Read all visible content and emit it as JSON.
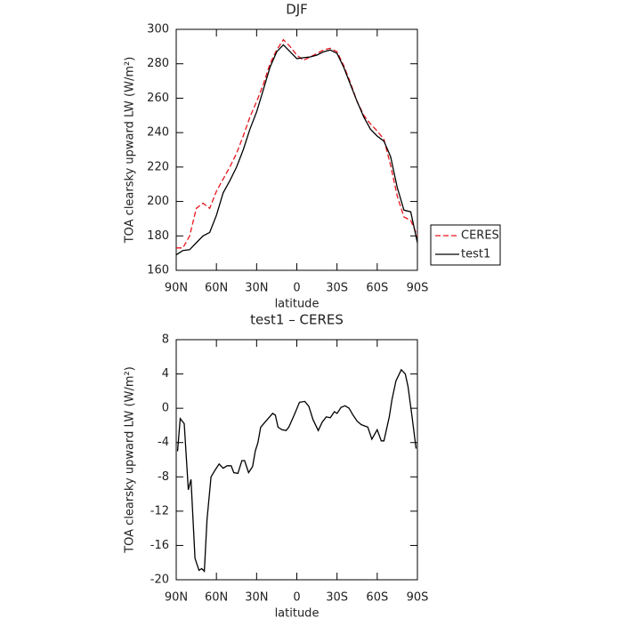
{
  "chart_data": [
    {
      "type": "line",
      "title": "DJF",
      "xlabel": "latitude",
      "ylabel": "TOA clearsky upward LW (W/m²)",
      "x": [
        90,
        85,
        80,
        75,
        70,
        65,
        60,
        55,
        50,
        45,
        40,
        35,
        30,
        25,
        20,
        15,
        10,
        5,
        0,
        -5,
        -10,
        -15,
        -20,
        -25,
        -30,
        -35,
        -40,
        -45,
        -50,
        -55,
        -60,
        -65,
        -70,
        -75,
        -80,
        -85,
        -90
      ],
      "series": [
        {
          "name": "CERES",
          "color": "#e8141c",
          "linestyle": "dashed",
          "values": [
            173,
            173,
            180,
            196,
            199,
            196,
            206,
            213,
            220,
            228,
            238,
            249,
            258,
            268,
            280,
            288,
            294,
            290,
            285,
            282,
            284,
            286,
            288,
            289,
            287,
            279,
            269,
            258,
            250,
            245,
            241,
            236,
            221,
            203,
            191,
            189,
            180
          ]
        },
        {
          "name": "test1",
          "color": "#000000",
          "linestyle": "solid",
          "values": [
            169,
            171.5,
            172,
            176,
            180,
            182,
            192,
            205,
            212,
            220,
            230,
            242,
            252,
            265,
            278,
            287,
            291,
            287,
            283,
            283.5,
            284,
            285,
            287,
            288,
            286,
            278,
            268,
            258,
            249,
            242,
            238,
            235,
            226,
            208,
            195,
            194,
            176
          ]
        }
      ],
      "xlim": [
        90,
        -90
      ],
      "xticks": [
        {
          "value": 90,
          "label": "90N"
        },
        {
          "value": 60,
          "label": "60N"
        },
        {
          "value": 30,
          "label": "30N"
        },
        0,
        {
          "value": -30,
          "label": "30S"
        },
        {
          "value": -60,
          "label": "60S"
        },
        {
          "value": -90,
          "label": "90S"
        }
      ],
      "ylim": [
        160,
        300
      ],
      "yticks": [
        160,
        180,
        200,
        220,
        240,
        260,
        280,
        300
      ],
      "legend": "right"
    },
    {
      "type": "line",
      "title": "test1 – CERES",
      "xlabel": "latitude",
      "ylabel": "TOA clearsky upward LW (W/m²)",
      "x": [
        89,
        87,
        84,
        81,
        79,
        76,
        73,
        71,
        69,
        67,
        64,
        61,
        58,
        55,
        52,
        49,
        47,
        44,
        41,
        39,
        36,
        33,
        31,
        29,
        27,
        22,
        18,
        16,
        14,
        11,
        8,
        6,
        2,
        -2,
        -6,
        -9,
        -12,
        -16,
        -19,
        -22,
        -25,
        -28,
        -30,
        -33,
        -36,
        -39,
        -42,
        -45,
        -48,
        -53,
        -56,
        -60,
        -63,
        -65,
        -69,
        -71,
        -74,
        -78,
        -81,
        -83,
        -86,
        -89
      ],
      "series": [
        {
          "color": "#000000",
          "linestyle": "solid",
          "values": [
            -5,
            -1.2,
            -1.8,
            -9.5,
            -8.3,
            -17.5,
            -18.9,
            -18.7,
            -19,
            -13,
            -8,
            -7.2,
            -6.5,
            -7,
            -6.7,
            -6.7,
            -7.5,
            -7.6,
            -6.1,
            -6.1,
            -7.5,
            -6.8,
            -5,
            -4,
            -2.2,
            -1.3,
            -0.6,
            -0.8,
            -2.2,
            -2.5,
            -2.6,
            -2.2,
            -0.8,
            0.7,
            0.8,
            0.2,
            -1.3,
            -2.6,
            -1.6,
            -1,
            -1.1,
            -0.4,
            -0.6,
            0.1,
            0.3,
            0,
            -0.8,
            -1.5,
            -1.9,
            -2.2,
            -3.6,
            -2.5,
            -3.8,
            -3.8,
            -1,
            1,
            3.2,
            4.5,
            4,
            2.5,
            -1,
            -4.7
          ]
        }
      ],
      "xlim": [
        90,
        -90
      ],
      "xticks": [
        {
          "value": 90,
          "label": "90N"
        },
        {
          "value": 60,
          "label": "60N"
        },
        {
          "value": 30,
          "label": "30N"
        },
        0,
        {
          "value": -30,
          "label": "30S"
        },
        {
          "value": -60,
          "label": "60S"
        },
        {
          "value": -90,
          "label": "90S"
        }
      ],
      "ylim": [
        -20,
        8
      ],
      "yticks": [
        -20,
        -16,
        -12,
        -8,
        -4,
        0,
        4,
        8
      ]
    }
  ]
}
